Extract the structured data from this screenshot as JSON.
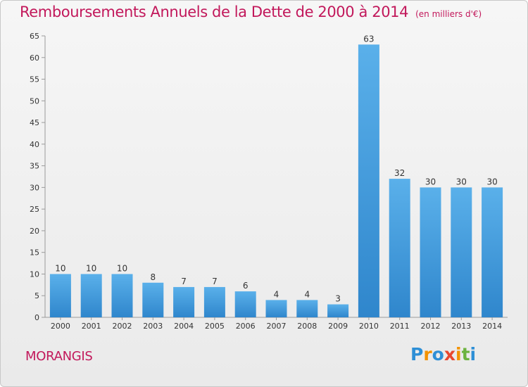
{
  "chart_data": {
    "type": "bar",
    "title": "Remboursements Annuels de la Dette de 2000 à 2014",
    "unit_note": "(en milliers d'€)",
    "categories": [
      "2000",
      "2001",
      "2002",
      "2003",
      "2004",
      "2005",
      "2006",
      "2007",
      "2008",
      "2009",
      "2010",
      "2011",
      "2012",
      "2013",
      "2014"
    ],
    "values": [
      10,
      10,
      10,
      8,
      7,
      7,
      6,
      4,
      4,
      3,
      63,
      32,
      30,
      30,
      30
    ],
    "ylim": [
      0,
      65
    ],
    "yticks": [
      0,
      5,
      10,
      15,
      20,
      25,
      30,
      35,
      40,
      45,
      50,
      55,
      60,
      65
    ],
    "grid": false,
    "bar_color": "#4aa3e3"
  },
  "commune": "MORANGIS",
  "logo": {
    "letters": [
      "P",
      "r",
      "o",
      "x",
      "i",
      "t",
      "i"
    ],
    "colors": [
      "#2e8fd6",
      "#f39200",
      "#2e8fd6",
      "#e8472e",
      "#f39200",
      "#6cb33f",
      "#2e8fd6"
    ]
  },
  "colors": {
    "accent": "#c2185b"
  }
}
